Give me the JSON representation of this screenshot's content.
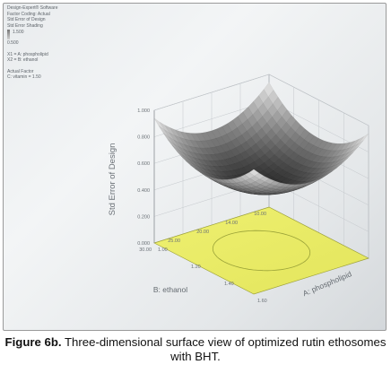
{
  "side_panel": {
    "app": "Design-Expert® Software",
    "factor_coding": "Factor Coding: Actual",
    "response_label": "Std Error of Design",
    "shading_label": "Std Error Shading",
    "scale_max": "1.500",
    "scale_min": "0.500",
    "x1_label": "X1 = A: phospholipid",
    "x2_label": "X2 = B: ethanol",
    "actual_factor_label": "Actual Factor",
    "actual_factor_value": "C: vitamin = 1.50"
  },
  "caption": {
    "label": "Figure 6b.",
    "text": "Three-dimensional surface view of optimized rutin ethosomes with BHT."
  },
  "colors": {
    "surface_dark": "#2f2f2f",
    "surface_light": "#e2e2e2",
    "contour_floor": "#eded6a",
    "background": "#eceff1"
  },
  "chart_data": {
    "type": "surface",
    "title": "",
    "zlabel": "Std Error of Design",
    "xlabel": "A: phospholipid",
    "ylabel": "B: ethanol",
    "z_ticks": [
      "1.000",
      "0.800",
      "0.600",
      "0.400",
      "0.200",
      "0.000"
    ],
    "x_ticks": [
      "1.00",
      "1.20",
      "1.40",
      "1.60"
    ],
    "y_ticks": [
      "10.00",
      "14.00",
      "20.00",
      "25.00",
      "30.00"
    ],
    "surface": {
      "x_range": [
        1.0,
        1.6
      ],
      "y_range": [
        10.0,
        30.0
      ],
      "center_value": 0.44,
      "corner_value": 1.0
    },
    "grid": true
  }
}
